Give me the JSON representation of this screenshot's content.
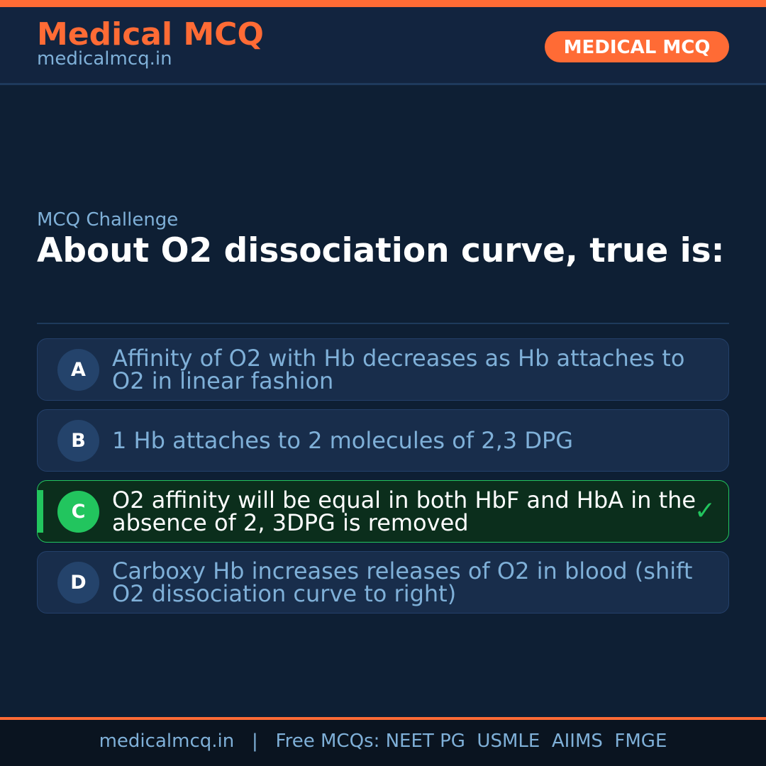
{
  "header": {
    "brand": "Medical MCQ",
    "site": "medicalmcq.in",
    "badge": "MEDICAL MCQ"
  },
  "colors": {
    "accent": "#ff6b35",
    "correct": "#22c55e",
    "background": "#0e1f34"
  },
  "question": {
    "eyebrow": "MCQ Challenge",
    "text": "About O2 dissociation curve, true is:"
  },
  "options": [
    {
      "letter": "A",
      "text": "Affinity of O2 with Hb decreases as Hb attaches to O2 in linear fashion"
    },
    {
      "letter": "B",
      "text": "1 Hb attaches to 2 molecules of 2,3 DPG"
    },
    {
      "letter": "C",
      "text": "O2 affinity will be equal in both HbF and HbA in the absence of 2, 3DPG is removed",
      "correct": true,
      "mark": "✓"
    },
    {
      "letter": "D",
      "text": "Carboxy Hb increases releases of O2 in blood (shift O2 dissociation curve to right)"
    }
  ],
  "footer": {
    "text": "medicalmcq.in   |   Free MCQs: NEET PG  USMLE  AIIMS  FMGE"
  }
}
